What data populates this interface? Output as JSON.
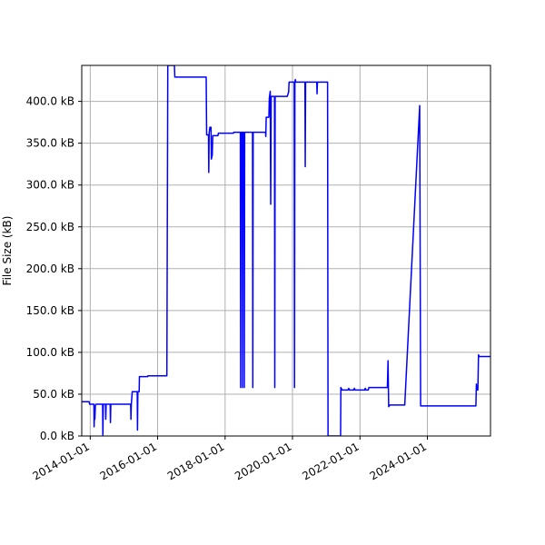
{
  "chart_data": {
    "type": "line",
    "title": "",
    "xlabel": "",
    "ylabel": "File Size (kB)",
    "grid": true,
    "legend": "none",
    "line_color": "#0000ff",
    "xlim": [
      "2013-10-01",
      "2025-11-15"
    ],
    "ylim": [
      0,
      443
    ],
    "x_ticks": [
      "2014-01-01",
      "2016-01-01",
      "2018-01-01",
      "2020-01-01",
      "2022-01-01",
      "2024-01-01"
    ],
    "y_ticks": [
      0,
      50,
      100,
      150,
      200,
      250,
      300,
      350,
      400
    ],
    "y_tick_labels": [
      "0.0 kB",
      "50.0 kB",
      "100.0 kB",
      "150.0 kB",
      "200.0 kB",
      "250.0 kB",
      "300.0 kB",
      "350.0 kB",
      "400.0 kB"
    ],
    "series": [
      {
        "points": [
          [
            "2013-10-01",
            41
          ],
          [
            "2013-12-20",
            41
          ],
          [
            "2013-12-25",
            38
          ],
          [
            "2014-02-10",
            38
          ],
          [
            "2014-02-12",
            11
          ],
          [
            "2014-02-16",
            30
          ],
          [
            "2014-02-20",
            20
          ],
          [
            "2014-02-26",
            37
          ],
          [
            "2014-03-05",
            38
          ],
          [
            "2014-05-15",
            38
          ],
          [
            "2014-05-18",
            0
          ],
          [
            "2014-05-22",
            38
          ],
          [
            "2014-06-15",
            38
          ],
          [
            "2014-06-18",
            20
          ],
          [
            "2014-06-22",
            38
          ],
          [
            "2014-08-05",
            38
          ],
          [
            "2014-08-08",
            16
          ],
          [
            "2014-08-12",
            38
          ],
          [
            "2015-03-15",
            38
          ],
          [
            "2015-03-18",
            20
          ],
          [
            "2015-03-22",
            38
          ],
          [
            "2015-04-01",
            53
          ],
          [
            "2015-05-25",
            53
          ],
          [
            "2015-05-28",
            7
          ],
          [
            "2015-06-01",
            53
          ],
          [
            "2015-06-15",
            53
          ],
          [
            "2015-06-18",
            71
          ],
          [
            "2015-09-15",
            71
          ],
          [
            "2015-09-18",
            72
          ],
          [
            "2016-04-10",
            72
          ],
          [
            "2016-04-20",
            443
          ],
          [
            "2016-07-01",
            443
          ],
          [
            "2016-07-05",
            429
          ],
          [
            "2017-06-10",
            429
          ],
          [
            "2017-06-15",
            360
          ],
          [
            "2017-07-05",
            360
          ],
          [
            "2017-07-08",
            315
          ],
          [
            "2017-07-12",
            362
          ],
          [
            "2017-07-20",
            369
          ],
          [
            "2017-08-01",
            369
          ],
          [
            "2017-08-05",
            331
          ],
          [
            "2017-08-15",
            336
          ],
          [
            "2017-08-20",
            359
          ],
          [
            "2017-10-15",
            359
          ],
          [
            "2017-10-20",
            362
          ],
          [
            "2018-04-01",
            362
          ],
          [
            "2018-04-05",
            363
          ],
          [
            "2018-06-15",
            363
          ],
          [
            "2018-06-18",
            58
          ],
          [
            "2018-06-22",
            363
          ],
          [
            "2018-07-05",
            363
          ],
          [
            "2018-07-08",
            58
          ],
          [
            "2018-07-12",
            363
          ],
          [
            "2018-07-25",
            363
          ],
          [
            "2018-07-28",
            58
          ],
          [
            "2018-08-01",
            363
          ],
          [
            "2018-10-25",
            363
          ],
          [
            "2018-10-28",
            58
          ],
          [
            "2018-11-01",
            363
          ],
          [
            "2019-03-15",
            363
          ],
          [
            "2019-03-18",
            358
          ],
          [
            "2019-03-22",
            381
          ],
          [
            "2019-04-20",
            381
          ],
          [
            "2019-04-25",
            404
          ],
          [
            "2019-05-05",
            412
          ],
          [
            "2019-05-10",
            277
          ],
          [
            "2019-05-15",
            406
          ],
          [
            "2019-06-20",
            406
          ],
          [
            "2019-06-23",
            58
          ],
          [
            "2019-06-27",
            406
          ],
          [
            "2019-11-05",
            406
          ],
          [
            "2019-11-20",
            411
          ],
          [
            "2019-11-25",
            423
          ],
          [
            "2020-01-20",
            423
          ],
          [
            "2020-01-23",
            58
          ],
          [
            "2020-01-27",
            423
          ],
          [
            "2020-02-01",
            426
          ],
          [
            "2020-02-05",
            423
          ],
          [
            "2020-05-15",
            423
          ],
          [
            "2020-05-18",
            322
          ],
          [
            "2020-05-22",
            423
          ],
          [
            "2020-09-20",
            423
          ],
          [
            "2020-09-23",
            409
          ],
          [
            "2020-09-27",
            423
          ],
          [
            "2021-01-15",
            423
          ],
          [
            "2021-01-20",
            0
          ],
          [
            "2021-06-05",
            0
          ],
          [
            "2021-06-08",
            58
          ],
          [
            "2021-06-20",
            55
          ],
          [
            "2021-08-25",
            55
          ],
          [
            "2021-09-01",
            57
          ],
          [
            "2021-09-08",
            55
          ],
          [
            "2021-10-25",
            55
          ],
          [
            "2021-11-01",
            57
          ],
          [
            "2021-11-08",
            55
          ],
          [
            "2022-02-20",
            55
          ],
          [
            "2022-02-27",
            57
          ],
          [
            "2022-03-05",
            55
          ],
          [
            "2022-04-01",
            55
          ],
          [
            "2022-04-08",
            58
          ],
          [
            "2022-10-25",
            58
          ],
          [
            "2022-11-01",
            90
          ],
          [
            "2022-11-08",
            35
          ],
          [
            "2022-11-20",
            37
          ],
          [
            "2023-05-01",
            37
          ],
          [
            "2023-10-10",
            395
          ],
          [
            "2023-10-20",
            36
          ],
          [
            "2025-06-10",
            36
          ],
          [
            "2025-06-15",
            62
          ],
          [
            "2025-06-20",
            55
          ],
          [
            "2025-07-01",
            55
          ],
          [
            "2025-07-08",
            97
          ],
          [
            "2025-07-15",
            95
          ],
          [
            "2025-11-15",
            95
          ]
        ]
      }
    ]
  }
}
